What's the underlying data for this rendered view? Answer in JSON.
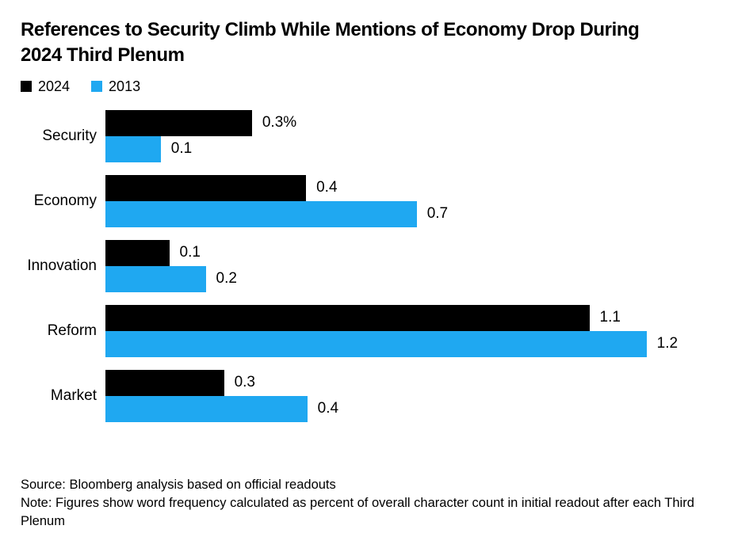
{
  "title": "References to Security Climb While Mentions of Economy Drop During 2024 Third Plenum",
  "colors": {
    "series_2024": "#000000",
    "series_2013": "#1FA8F1",
    "background": "#ffffff",
    "text": "#000000"
  },
  "legend": [
    {
      "label": "2024",
      "color": "#000000"
    },
    {
      "label": "2013",
      "color": "#1FA8F1"
    }
  ],
  "chart_data": {
    "type": "bar",
    "orientation": "horizontal",
    "title": "References to Security Climb While Mentions of Economy Drop During 2024 Third Plenum",
    "categories": [
      "Security",
      "Economy",
      "Innovation",
      "Reform",
      "Market"
    ],
    "series": [
      {
        "name": "2024",
        "color": "#000000",
        "values": [
          0.3,
          0.4,
          0.1,
          1.1,
          0.3
        ],
        "labels": [
          "0.3%",
          "0.4",
          "0.1",
          "1.1",
          "0.3"
        ],
        "bar_pct": [
          24.1,
          33.0,
          10.5,
          79.6,
          19.5
        ]
      },
      {
        "name": "2013",
        "color": "#1FA8F1",
        "values": [
          0.1,
          0.7,
          0.2,
          1.2,
          0.4
        ],
        "labels": [
          "0.1",
          "0.7",
          "0.2",
          "1.2",
          "0.4"
        ],
        "bar_pct": [
          9.1,
          51.2,
          16.5,
          89.0,
          33.2
        ]
      }
    ],
    "unit": "percent of overall character count",
    "xlim": [
      0,
      1.35
    ],
    "grid": false,
    "legend_position": "top-left",
    "value_labels": "end-of-bar"
  },
  "footer": {
    "source": "Source: Bloomberg analysis based on official readouts",
    "note": "Note: Figures show word frequency calculated as percent of overall character count in initial readout after each Third Plenum"
  }
}
